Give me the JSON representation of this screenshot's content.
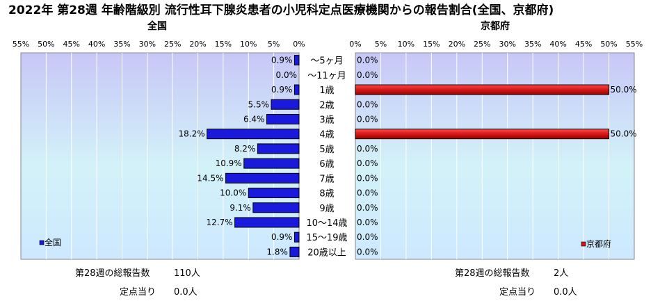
{
  "title": "2022年 第28週 年齢階級別 流行性耳下腺炎患者の小児科定点医療機関からの報告割合(全国、京都府)",
  "chart_data": {
    "type": "bar",
    "categories": [
      "～5ヶ月",
      "～11ヶ月",
      "1歳",
      "2歳",
      "3歳",
      "4歳",
      "5歳",
      "6歳",
      "7歳",
      "8歳",
      "9歳",
      "10～14歳",
      "15～19歳",
      "20歳以上"
    ],
    "x_ticks": [
      "55%",
      "50%",
      "45%",
      "40%",
      "35%",
      "30%",
      "25%",
      "20%",
      "15%",
      "10%",
      "5%",
      "0%"
    ],
    "x_ticks_right": [
      "0%",
      "5%",
      "10%",
      "15%",
      "20%",
      "25%",
      "30%",
      "35%",
      "40%",
      "45%",
      "50%",
      "55%"
    ],
    "xlim": [
      0,
      55
    ],
    "panels": [
      {
        "subtitle": "全国",
        "legend": "全国",
        "color": "#1a1adc",
        "values": [
          0.9,
          0.0,
          0.9,
          5.5,
          6.4,
          18.2,
          8.2,
          10.9,
          14.5,
          10.0,
          9.1,
          12.7,
          0.9,
          1.8
        ],
        "labels": [
          "0.9%",
          "0.0%",
          "0.9%",
          "5.5%",
          "6.4%",
          "18.2%",
          "8.2%",
          "10.9%",
          "14.5%",
          "10.0%",
          "9.1%",
          "12.7%",
          "0.9%",
          "1.8%"
        ]
      },
      {
        "subtitle": "京都府",
        "legend": "京都府",
        "color": "#d81818",
        "values": [
          0.0,
          0.0,
          50.0,
          0.0,
          0.0,
          50.0,
          0.0,
          0.0,
          0.0,
          0.0,
          0.0,
          0.0,
          0.0,
          0.0
        ],
        "labels": [
          "0.0%",
          "0.0%",
          "50.0%",
          "0.0%",
          "0.0%",
          "50.0%",
          "0.0%",
          "0.0%",
          "0.0%",
          "0.0%",
          "0.0%",
          "0.0%",
          "0.0%",
          "0.0%"
        ]
      }
    ]
  },
  "footer": {
    "left": {
      "total_label": "第28週の総報告数",
      "total_value": "110人",
      "per_label": "定点当り",
      "per_value": "0.0人"
    },
    "right": {
      "total_label": "第28週の総報告数",
      "total_value": "2人",
      "per_label": "定点当り",
      "per_value": "0.0人"
    }
  }
}
